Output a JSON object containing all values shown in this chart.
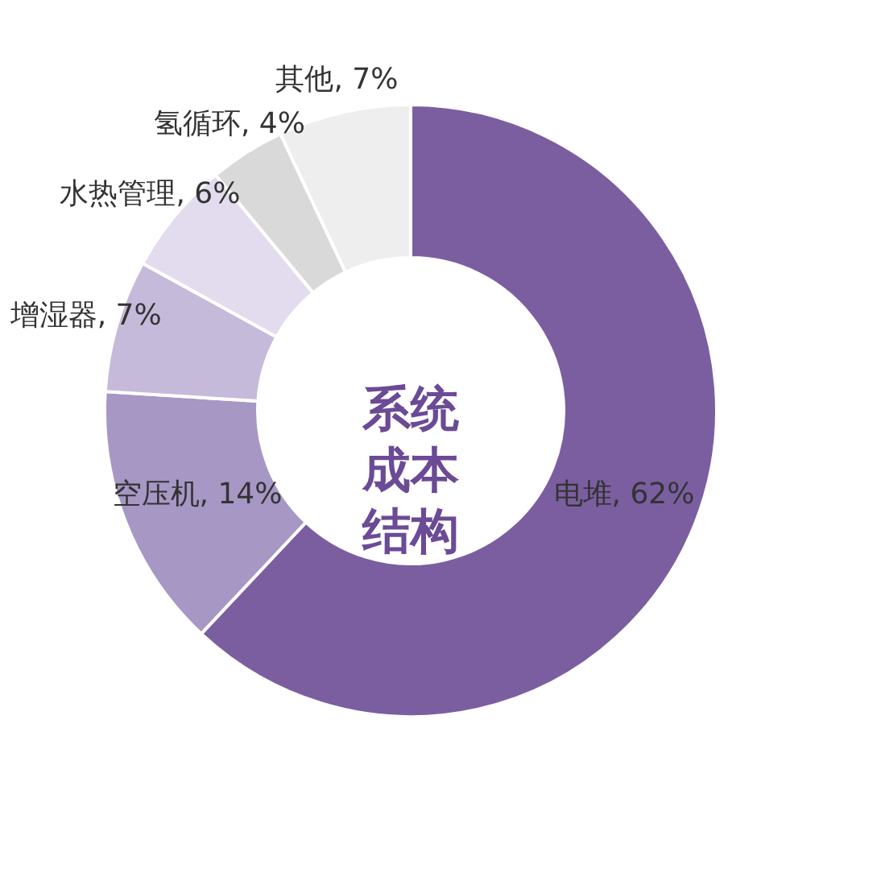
{
  "chart_data": {
    "type": "donut",
    "title": "系统成本结构",
    "categories": [
      "电堆",
      "空压机",
      "增湿器",
      "水热管理",
      "氢循环",
      "其他"
    ],
    "values": [
      62,
      14,
      7,
      6,
      4,
      7
    ],
    "value_labels": [
      "62%",
      "14%",
      "7%",
      "6%",
      "4%",
      "7%"
    ],
    "colors": [
      "#7b5ea0",
      "#a797c4",
      "#c6badb",
      "#e3dcee",
      "#d9d9d9",
      "#eeeeee"
    ]
  }
}
